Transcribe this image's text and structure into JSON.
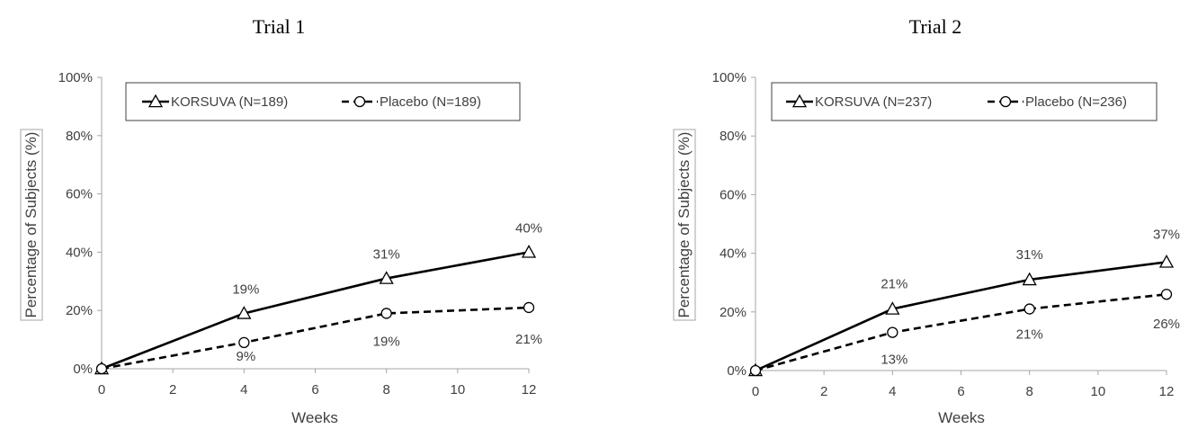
{
  "chart_data": [
    {
      "type": "line",
      "title": "Trial 1",
      "xlabel": "Weeks",
      "ylabel": "Percentage of Subjects (%)",
      "xlim": [
        0,
        12
      ],
      "ylim": [
        0,
        100
      ],
      "xticks": [
        "0",
        "2",
        "4",
        "6",
        "8",
        "10",
        "12"
      ],
      "yticks": [
        "0%",
        "20%",
        "40%",
        "60%",
        "80%",
        "100%"
      ],
      "legend_position": "top",
      "series": [
        {
          "name": "KORSUVA (N=189)",
          "marker": "triangle",
          "line": "solid",
          "color": "#000000",
          "x": [
            0,
            4,
            8,
            12
          ],
          "y": [
            0,
            19,
            31,
            40
          ],
          "labels": [
            "",
            "19%",
            "31%",
            "40%"
          ]
        },
        {
          "name": "Placebo (N=189)",
          "marker": "circle",
          "line": "dashed",
          "color": "#000000",
          "x": [
            0,
            4,
            8,
            12
          ],
          "y": [
            0,
            9,
            19,
            21
          ],
          "labels": [
            "",
            "9%",
            "19%",
            "21%"
          ]
        }
      ]
    },
    {
      "type": "line",
      "title": "Trial 2",
      "xlabel": "Weeks",
      "ylabel": "Percentage of Subjects (%)",
      "xlim": [
        0,
        12
      ],
      "ylim": [
        0,
        100
      ],
      "xticks": [
        "0",
        "2",
        "4",
        "6",
        "8",
        "10",
        "12"
      ],
      "yticks": [
        "0%",
        "20%",
        "40%",
        "60%",
        "80%",
        "100%"
      ],
      "legend_position": "top",
      "series": [
        {
          "name": "KORSUVA (N=237)",
          "marker": "triangle",
          "line": "solid",
          "color": "#000000",
          "x": [
            0,
            4,
            8,
            12
          ],
          "y": [
            0,
            21,
            31,
            37
          ],
          "labels": [
            "",
            "21%",
            "31%",
            "37%"
          ]
        },
        {
          "name": "Placebo (N=236)",
          "marker": "circle",
          "line": "dashed",
          "color": "#000000",
          "x": [
            0,
            4,
            8,
            12
          ],
          "y": [
            0,
            13,
            21,
            26
          ],
          "labels": [
            "",
            "13%",
            "21%",
            "26%"
          ]
        }
      ]
    }
  ]
}
